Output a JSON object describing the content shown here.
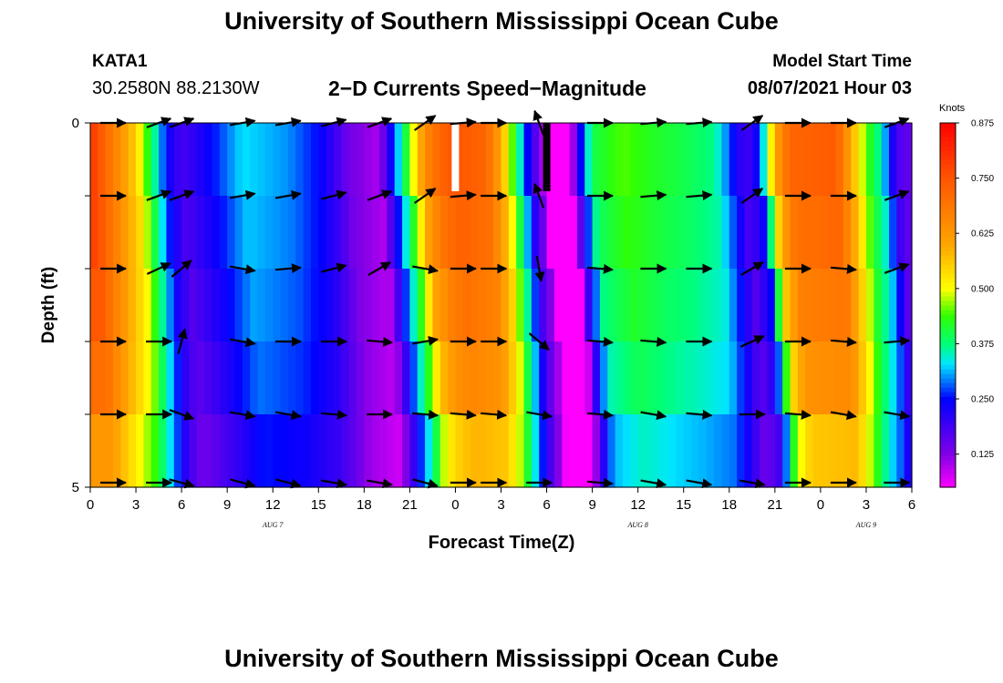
{
  "header": {
    "title": "University of Southern Mississippi Ocean Cube",
    "station": "KATA1",
    "location": "30.2580N  88.2130W",
    "subtitle": "2−D Currents Speed−Magnitude",
    "model_label": "Model Start Time",
    "model_time": "08/07/2021 Hour 03"
  },
  "footer": {
    "title": "University of Southern Mississippi Ocean Cube"
  },
  "chart_data": {
    "type": "heatmap",
    "title": "2-D Currents Speed-Magnitude",
    "xlabel": "Forecast Time(Z)",
    "ylabel": "Depth (ft)",
    "x_range_hours": [
      0,
      54
    ],
    "y_range_ft": [
      0,
      5
    ],
    "x_tick_labels": [
      "0",
      "3",
      "6",
      "9",
      "12",
      "15",
      "18",
      "21",
      "0",
      "3",
      "6",
      "9",
      "12",
      "15",
      "18",
      "21",
      "0",
      "3",
      "6"
    ],
    "y_tick_labels": [
      "0",
      "5"
    ],
    "date_labels": [
      {
        "hour": 12,
        "text": "AUG 7"
      },
      {
        "hour": 36,
        "text": "AUG 8"
      },
      {
        "hour": 51,
        "text": "AUG 9"
      }
    ],
    "depth_rows": 5,
    "speed_knots_by_hour": [
      [
        0,
        0.8
      ],
      [
        3,
        0.55
      ],
      [
        4,
        0.4
      ],
      [
        5,
        0.25
      ],
      [
        6,
        0.18
      ],
      [
        8,
        0.25
      ],
      [
        10,
        0.33
      ],
      [
        13,
        0.3
      ],
      [
        15,
        0.25
      ],
      [
        16,
        0.2
      ],
      [
        17,
        0.14
      ],
      [
        19,
        0.1
      ],
      [
        20,
        0.28
      ],
      [
        21,
        0.45
      ],
      [
        22,
        0.65
      ],
      [
        23,
        0.72
      ],
      [
        24,
        0.75
      ],
      [
        26,
        0.72
      ],
      [
        27,
        0.6
      ],
      [
        28,
        0.4
      ],
      [
        29,
        0.2
      ],
      [
        29.7,
        0.12
      ],
      [
        30,
        0.02
      ],
      [
        31.5,
        0.02
      ],
      [
        32,
        0.2
      ],
      [
        33,
        0.4
      ],
      [
        35,
        0.45
      ],
      [
        37,
        0.42
      ],
      [
        39,
        0.4
      ],
      [
        41,
        0.37
      ],
      [
        42,
        0.28
      ],
      [
        43,
        0.18
      ],
      [
        44,
        0.25
      ],
      [
        45,
        0.6
      ],
      [
        46,
        0.72
      ],
      [
        49,
        0.74
      ],
      [
        50,
        0.6
      ],
      [
        51,
        0.45
      ],
      [
        52,
        0.35
      ],
      [
        53,
        0.18
      ],
      [
        54,
        0.15
      ]
    ],
    "row_speed_factor": [
      1.0,
      0.97,
      0.93,
      0.88,
      0.78
    ],
    "colorbar": {
      "label": "Knots",
      "range": [
        0.05,
        0.875
      ],
      "ticks": [
        "0.875",
        "0.750",
        "0.625",
        "0.500",
        "0.375",
        "0.250",
        "0.125"
      ],
      "tick_values": [
        0.875,
        0.75,
        0.625,
        0.5,
        0.375,
        0.25,
        0.125
      ]
    },
    "vector_columns_hours": [
      1.5,
      4.5,
      6,
      10,
      13,
      16,
      19,
      22,
      24.5,
      26.5,
      29.5,
      33.5,
      37,
      40,
      43.5,
      46.5,
      49.5,
      53
    ],
    "vector_rows_ft": [
      0,
      1,
      2,
      3,
      4,
      5
    ],
    "vector_direction_deg": [
      [
        0,
        -20,
        -20,
        -10,
        -10,
        -15,
        -20,
        -35,
        -5,
        0,
        -110,
        0,
        -5,
        -5,
        -35,
        0,
        0,
        -20
      ],
      [
        0,
        -20,
        -20,
        -10,
        -10,
        -15,
        -20,
        -35,
        -5,
        0,
        -110,
        0,
        -5,
        -5,
        -35,
        0,
        0,
        -20
      ],
      [
        0,
        -25,
        -40,
        10,
        -5,
        -15,
        -30,
        10,
        0,
        0,
        80,
        5,
        0,
        0,
        -30,
        0,
        5,
        -20
      ],
      [
        0,
        0,
        -75,
        10,
        0,
        0,
        5,
        -10,
        0,
        0,
        40,
        5,
        5,
        0,
        -25,
        0,
        5,
        -5
      ],
      [
        0,
        0,
        20,
        10,
        10,
        5,
        0,
        5,
        5,
        5,
        10,
        5,
        10,
        5,
        0,
        5,
        10,
        10
      ],
      [
        0,
        0,
        15,
        15,
        15,
        10,
        10,
        15,
        0,
        0,
        0,
        5,
        10,
        10,
        10,
        0,
        0,
        0
      ]
    ],
    "missing_markers": [
      {
        "hour": 24,
        "value": "white"
      },
      {
        "hour": 30,
        "value": "black"
      }
    ]
  }
}
